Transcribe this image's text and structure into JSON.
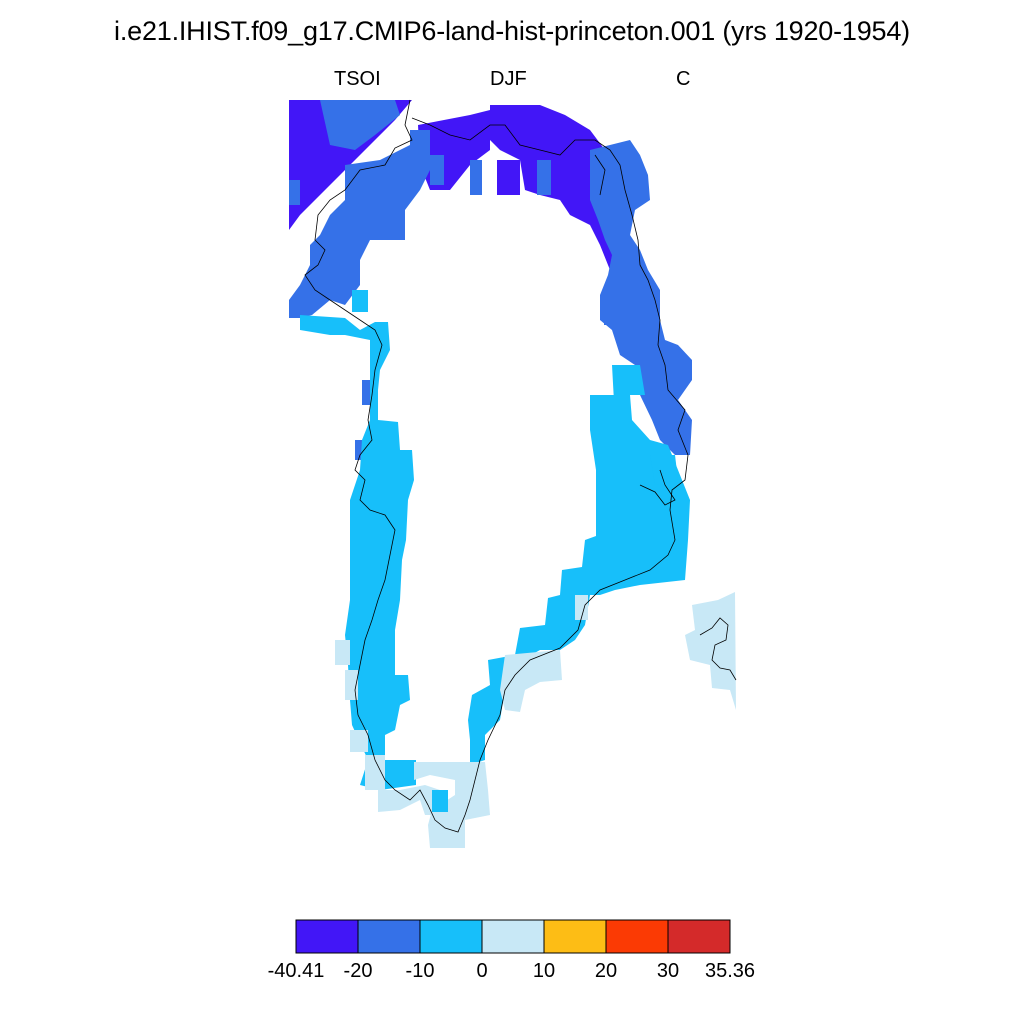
{
  "title": "i.e21.IHIST.f09_g17.CMIP6-land-hist-princeton.001 (yrs 1920-1954)",
  "subtitle": {
    "variable": "TSOI",
    "season": "DJF",
    "units": "C"
  },
  "colorbar": {
    "labels": [
      "-40.41",
      "-20",
      "-10",
      "0",
      "10",
      "20",
      "30",
      "35.36"
    ],
    "colors": [
      "#4216f7",
      "#3571e8",
      "#17bffa",
      "#c8e8f6",
      "#fdbd15",
      "#fb3a04",
      "#d42a2a"
    ]
  },
  "palette": {
    "le_-20": "#4216f7",
    "-20_-10": "#3571e8",
    "-10_0": "#17bffa",
    "0_10": "#c8e8f6"
  },
  "map_region": "Greenland"
}
